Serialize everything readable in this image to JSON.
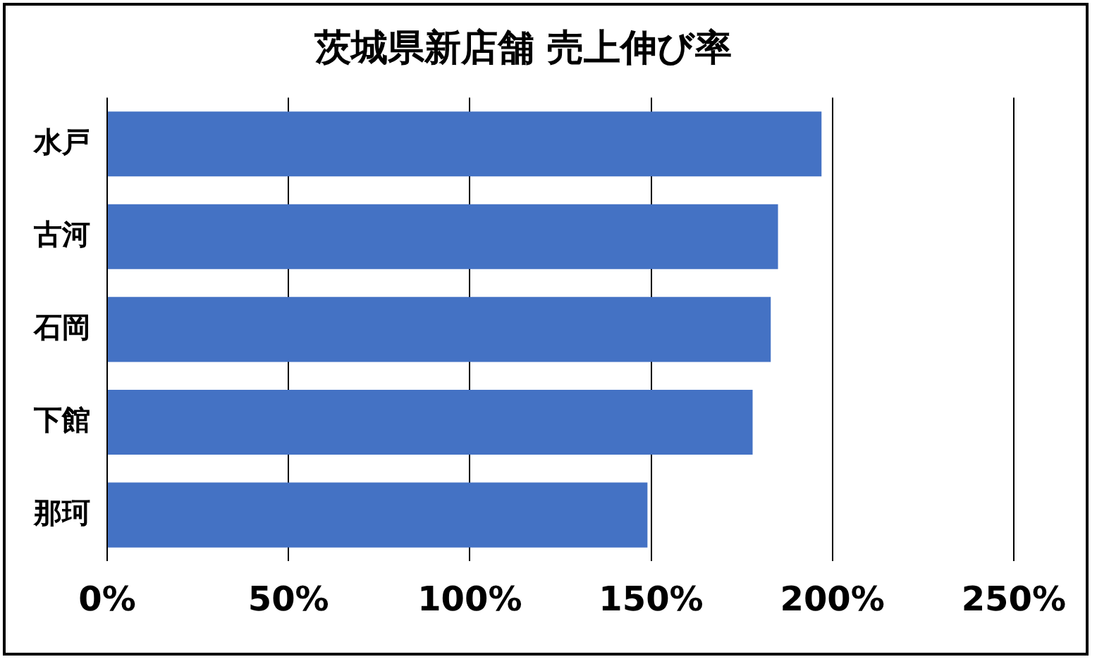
{
  "chart_data": {
    "type": "bar",
    "orientation": "horizontal",
    "title": "茨城県新店舗 売上伸び率",
    "categories": [
      "水戸",
      "古河",
      "石岡",
      "下館",
      "那珂"
    ],
    "values": [
      197,
      185,
      183,
      178,
      149
    ],
    "color": "#4472c4",
    "xlim": [
      0,
      250
    ],
    "xticks": [
      {
        "value": 0,
        "label": "0%"
      },
      {
        "value": 50,
        "label": "50%"
      },
      {
        "value": 100,
        "label": "100%"
      },
      {
        "value": 150,
        "label": "150%"
      },
      {
        "value": 200,
        "label": "200%"
      },
      {
        "value": 250,
        "label": "250%"
      }
    ],
    "grid": "x",
    "legend": false
  }
}
